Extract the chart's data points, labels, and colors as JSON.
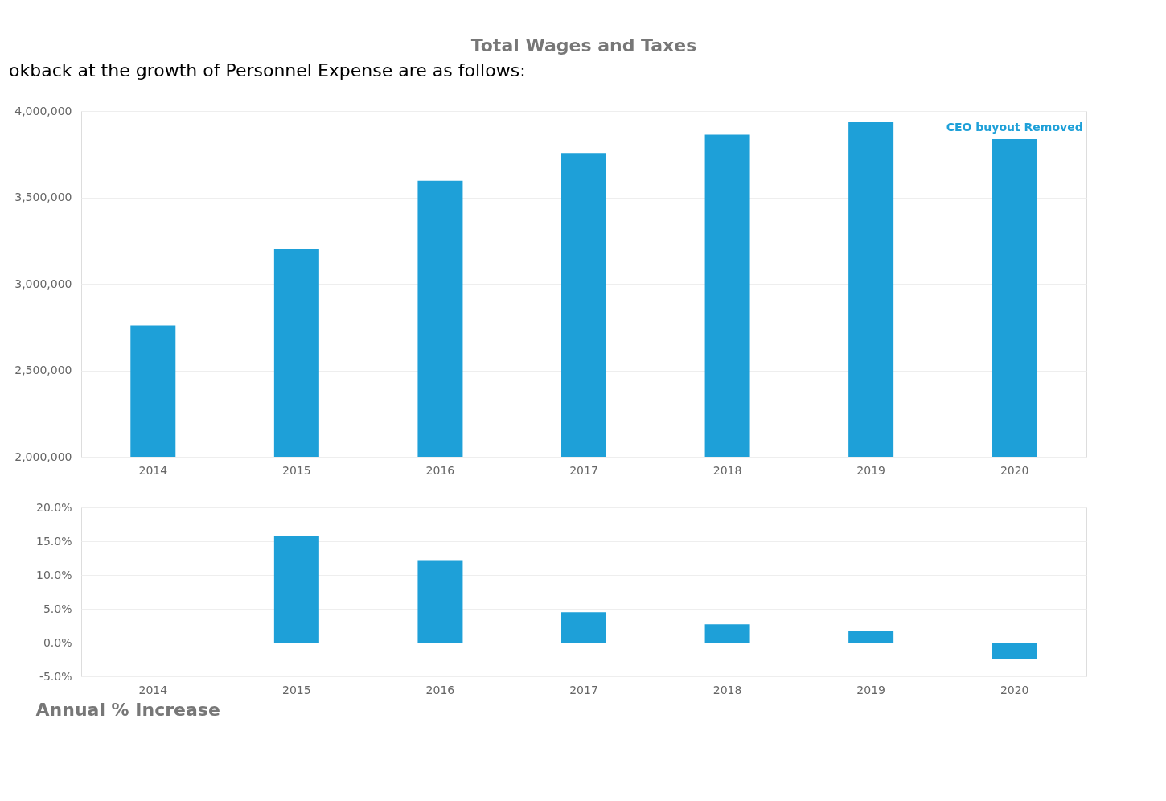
{
  "chart_data": [
    {
      "type": "bar",
      "title": "Total Wages and Taxes",
      "categories": [
        "2014",
        "2015",
        "2016",
        "2017",
        "2018",
        "2019",
        "2020"
      ],
      "values": [
        2760000,
        3200000,
        3597000,
        3757000,
        3863000,
        3935000,
        3837000
      ],
      "color": "#1ea0d8",
      "ylim": [
        2000000,
        4000000
      ],
      "yticks": [
        {
          "value": 2000000,
          "label": "2,000,000"
        },
        {
          "value": 2500000,
          "label": "2,500,000"
        },
        {
          "value": 3000000,
          "label": "3,000,000"
        },
        {
          "value": 3500000,
          "label": "3,500,000"
        },
        {
          "value": 4000000,
          "label": "4,000,000"
        }
      ],
      "grid": "y",
      "annotations": [
        "okback at the growth of Personnel Expense are as follows:",
        {
          "text": "CEO buyout Removed",
          "x": "2020",
          "y": 3837000
        }
      ]
    },
    {
      "type": "bar",
      "title": "Annual % Increase",
      "categories": [
        "2014",
        "2015",
        "2016",
        "2017",
        "2018",
        "2019",
        "2020"
      ],
      "values": [
        null,
        15.8,
        12.2,
        4.5,
        2.7,
        1.8,
        -2.4
      ],
      "color": "#1ea0d8",
      "ylim": [
        -5,
        20
      ],
      "yticks": [
        {
          "value": -5,
          "label": "-5.0%"
        },
        {
          "value": 0,
          "label": "0.0%"
        },
        {
          "value": 5,
          "label": "5.0%"
        },
        {
          "value": 10,
          "label": "10.0%"
        },
        {
          "value": 15,
          "label": "15.0%"
        },
        {
          "value": 20,
          "label": "20.0%"
        }
      ],
      "grid": "y"
    }
  ]
}
